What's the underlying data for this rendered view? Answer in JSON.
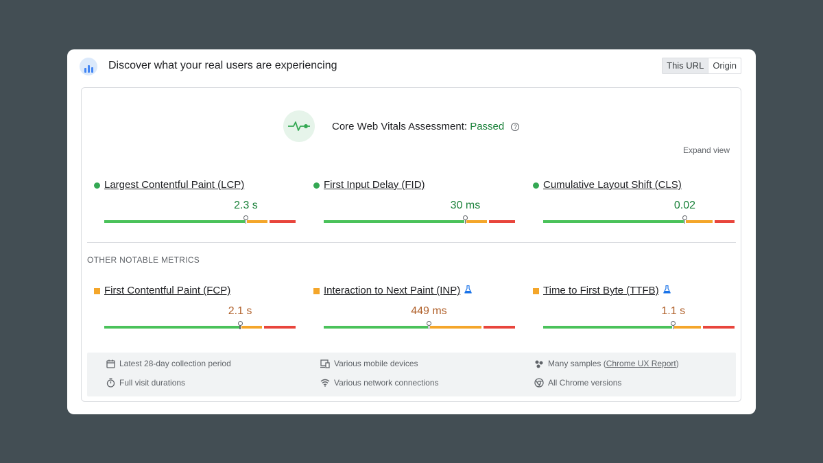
{
  "header": {
    "title": "Discover what your real users are experiencing",
    "toggle": [
      "This URL",
      "Origin"
    ],
    "logo_icon": "crux-bars-icon"
  },
  "assessment": {
    "label": "Core Web Vitals Assessment:",
    "status": "Passed",
    "status_color": "#188038",
    "help_icon": "question-circle-icon",
    "expand_label": "Expand view"
  },
  "core_metrics": [
    {
      "name": "Largest Contentful Paint (LCP)",
      "value": "2.3 s",
      "rating": "good",
      "dist": [
        0.74,
        0.12,
        0.14
      ]
    },
    {
      "name": "First Input Delay (FID)",
      "value": "30 ms",
      "rating": "good",
      "dist": [
        0.74,
        0.12,
        0.14
      ]
    },
    {
      "name": "Cumulative Layout Shift (CLS)",
      "value": "0.02",
      "rating": "good",
      "dist": [
        0.74,
        0.15,
        0.11
      ]
    }
  ],
  "other_label": "OTHER NOTABLE METRICS",
  "other_metrics": [
    {
      "name": "First Contentful Paint (FCP)",
      "value": "2.1 s",
      "rating": "ni",
      "experimental": false,
      "dist": [
        0.71,
        0.12,
        0.17
      ]
    },
    {
      "name": "Interaction to Next Paint (INP)",
      "value": "449 ms",
      "rating": "ni",
      "experimental": true,
      "dist": [
        0.55,
        0.28,
        0.17
      ]
    },
    {
      "name": "Time to First Byte (TTFB)",
      "value": "1.1 s",
      "rating": "ni",
      "experimental": true,
      "dist": [
        0.68,
        0.15,
        0.17
      ]
    }
  ],
  "colors": {
    "good": "#4ac25a",
    "needs_improvement": "#f4a62a",
    "poor": "#e8453c"
  },
  "footer": {
    "items": [
      {
        "icon": "calendar-icon",
        "text": "Latest 28-day collection period"
      },
      {
        "icon": "devices-icon",
        "text": "Various mobile devices"
      },
      {
        "icon": "users-icon",
        "text": "Many samples",
        "link": "Chrome UX Report"
      },
      {
        "icon": "timer-icon",
        "text": "Full visit durations"
      },
      {
        "icon": "wifi-icon",
        "text": "Various network connections"
      },
      {
        "icon": "chrome-icon",
        "text": "All Chrome versions"
      }
    ]
  }
}
